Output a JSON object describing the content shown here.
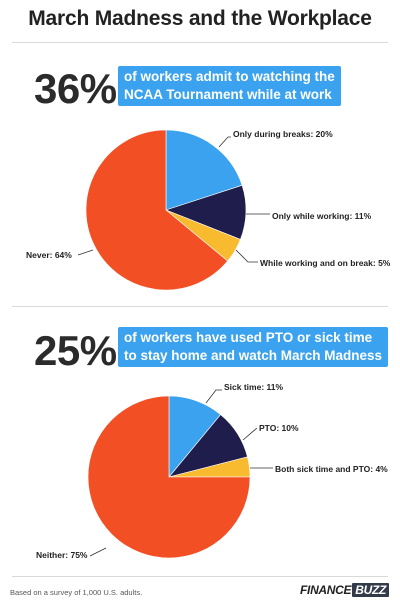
{
  "page": {
    "title": "March Madness and the Workplace",
    "footer_note": "Based on a survey of 1,000 U.S. adults.",
    "brand_first": "FINANCE",
    "brand_second": "BUZZ"
  },
  "colors": {
    "blue": "#3aa2ef",
    "navy": "#1f1d4c",
    "yellow": "#f8bb2f",
    "orange": "#f34f25"
  },
  "section1": {
    "big_stat": "36%",
    "callout_line1": "of workers admit to watching the",
    "callout_line2": "NCAA Tournament while at work"
  },
  "section2": {
    "big_stat": "25%",
    "callout_line1": "of workers have used PTO or sick time",
    "callout_line2": "to stay home and watch March Madness"
  },
  "chart_data": [
    {
      "type": "pie",
      "slices": [
        {
          "label": "Only during breaks: 20%",
          "value": 20,
          "color": "#3aa2ef"
        },
        {
          "label": "Only while working: 11%",
          "value": 11,
          "color": "#1f1d4c"
        },
        {
          "label": "While working and on break: 5%",
          "value": 5,
          "color": "#f8bb2f"
        },
        {
          "label": "Never: 64%",
          "value": 64,
          "color": "#f34f25"
        }
      ]
    },
    {
      "type": "pie",
      "slices": [
        {
          "label": "Sick time: 11%",
          "value": 11,
          "color": "#3aa2ef"
        },
        {
          "label": "PTO: 10%",
          "value": 10,
          "color": "#1f1d4c"
        },
        {
          "label": "Both sick time and PTO: 4%",
          "value": 4,
          "color": "#f8bb2f"
        },
        {
          "label": "Neither: 75%",
          "value": 75,
          "color": "#f34f25"
        }
      ]
    }
  ]
}
